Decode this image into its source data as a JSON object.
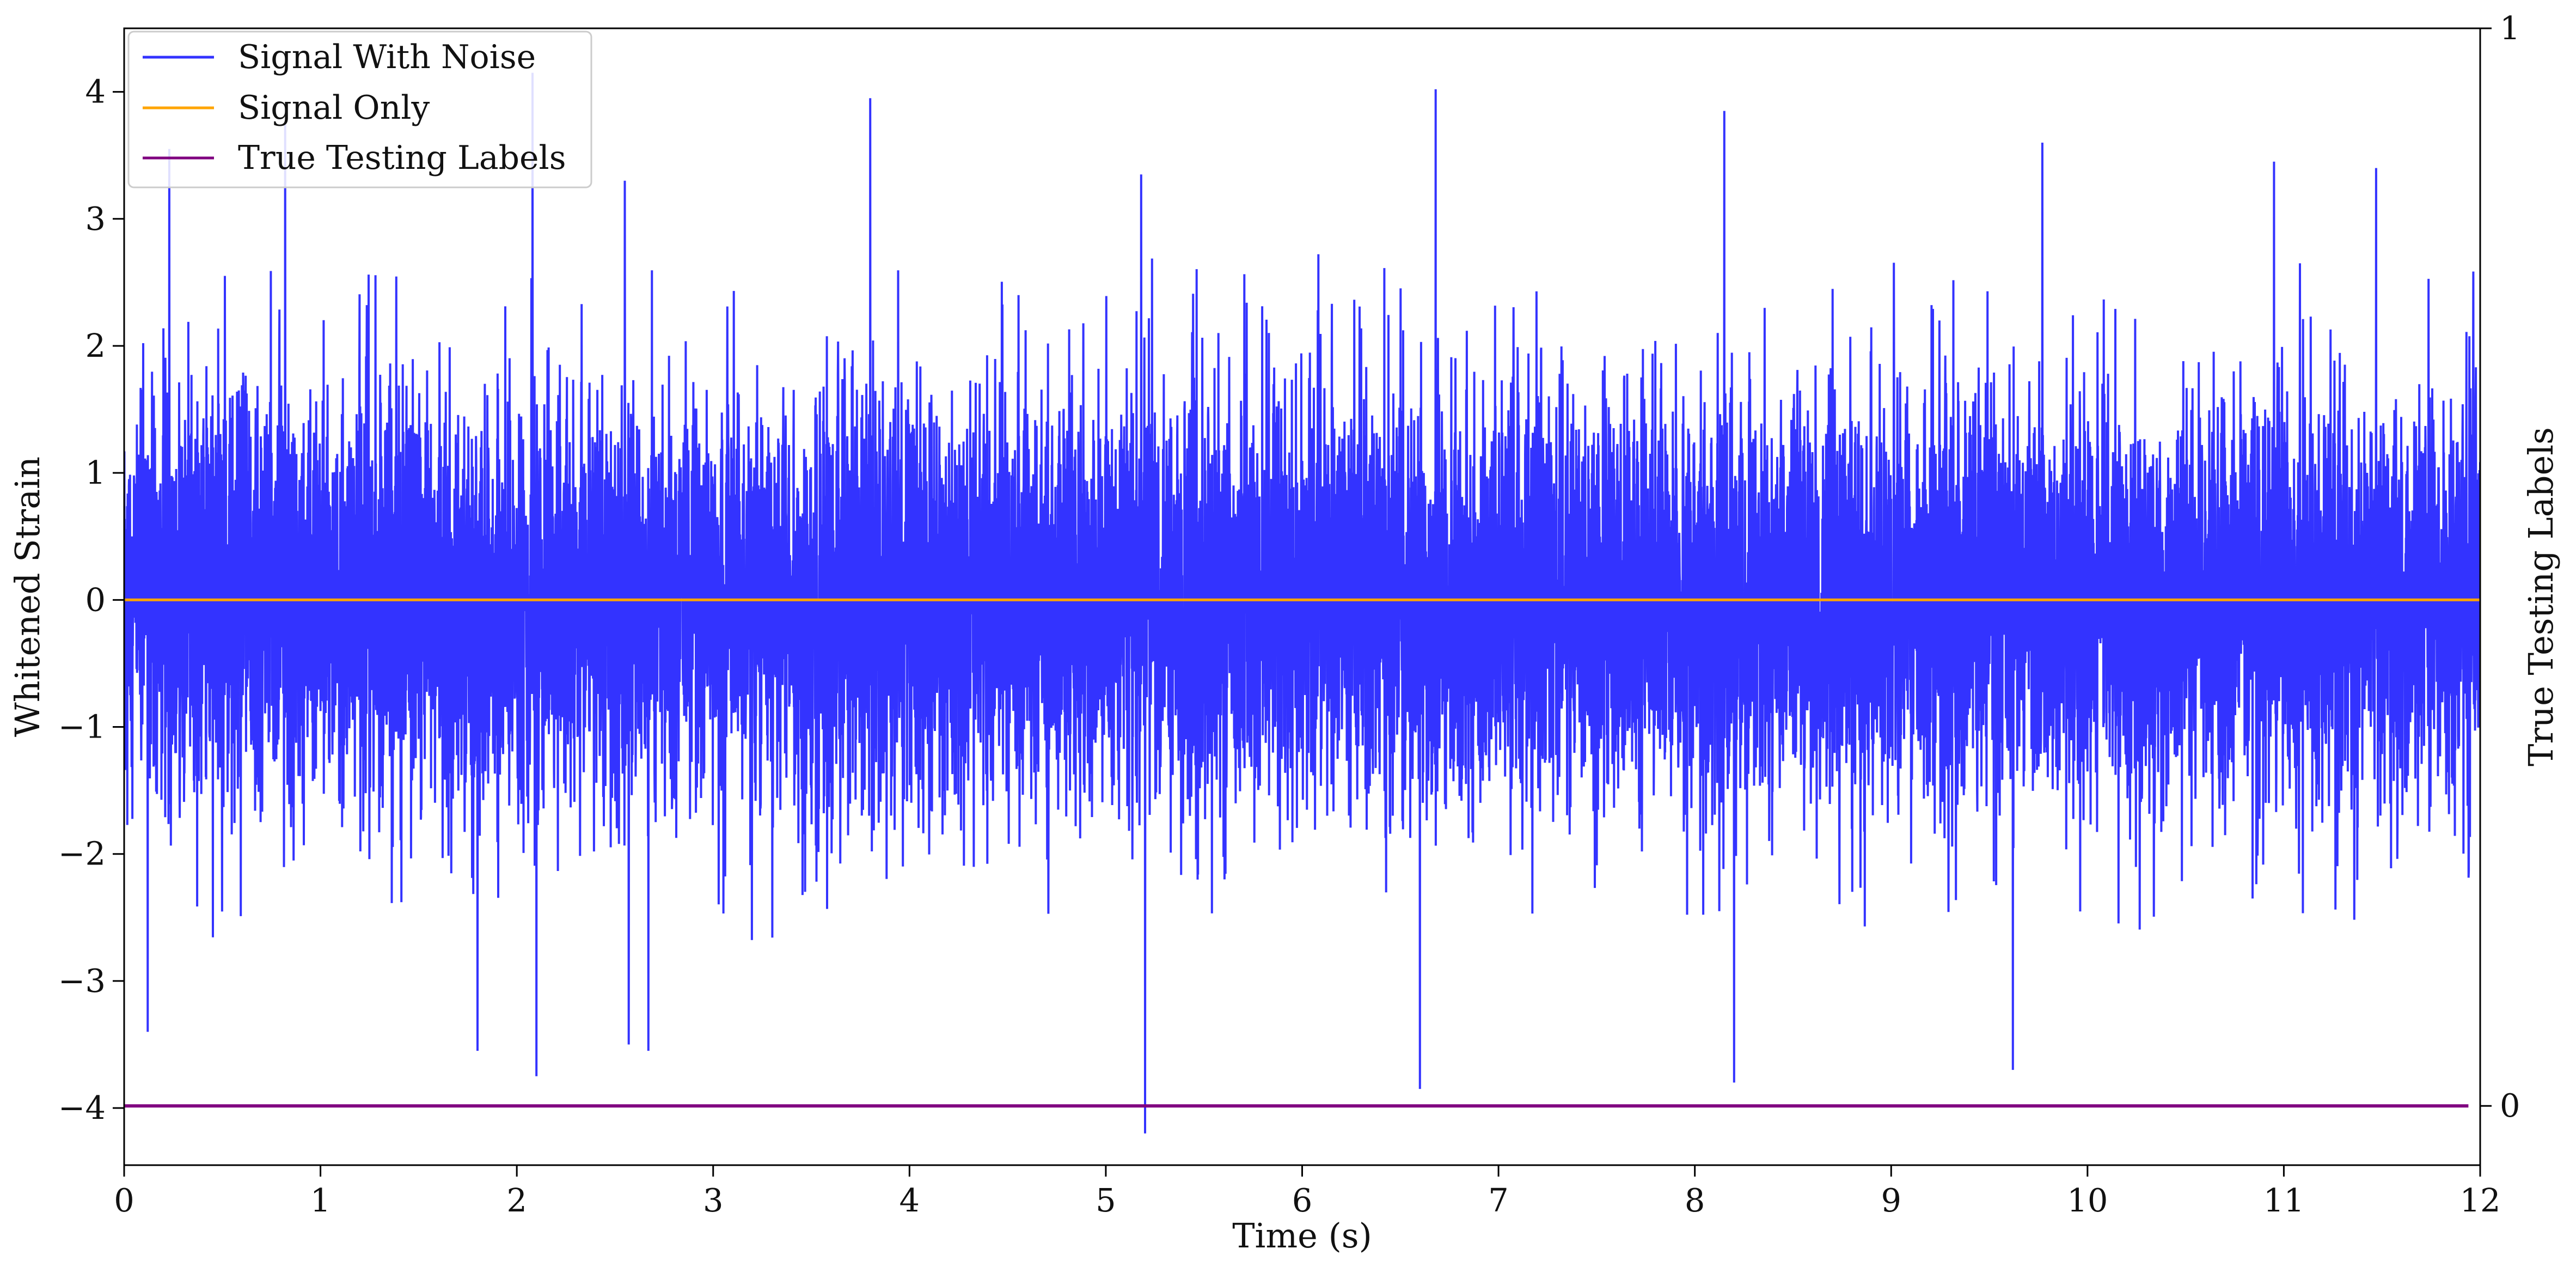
{
  "chart_data": {
    "type": "line",
    "title": "",
    "xlabel": "Time (s)",
    "ylabel": "Whitened Strain",
    "y2label": "True Testing Labels",
    "xlim": [
      0,
      12
    ],
    "ylim": [
      -4.45,
      4.5
    ],
    "y2lim": [
      -0.055,
      1.0
    ],
    "xticks": [
      0,
      1,
      2,
      3,
      4,
      5,
      6,
      7,
      8,
      9,
      10,
      11,
      12
    ],
    "xtick_labels": [
      "0",
      "1",
      "2",
      "3",
      "4",
      "5",
      "6",
      "7",
      "8",
      "9",
      "10",
      "11",
      "12"
    ],
    "yticks": [
      -4,
      -3,
      -2,
      -1,
      0,
      1,
      2,
      3,
      4
    ],
    "ytick_labels": [
      "−4",
      "−3",
      "−2",
      "−1",
      "0",
      "1",
      "2",
      "3",
      "4"
    ],
    "y2ticks": [
      0,
      1
    ],
    "y2tick_labels": [
      "0",
      "1"
    ],
    "grid": false,
    "legend_position": "top-left",
    "series": [
      {
        "name": "Signal With Noise",
        "axis": "left",
        "color": "#3333ff",
        "description_shape": "dense gaussian noise around 0, mostly within [-2.3, 2.5]",
        "spikes": [
          {
            "x": 0.23,
            "y": 3.55
          },
          {
            "x": 0.82,
            "y": 3.75
          },
          {
            "x": 2.08,
            "y": 4.15
          },
          {
            "x": 2.1,
            "y": -3.75
          },
          {
            "x": 2.55,
            "y": 3.3
          },
          {
            "x": 2.57,
            "y": -3.5
          },
          {
            "x": 2.67,
            "y": -3.55
          },
          {
            "x": 3.8,
            "y": 3.95
          },
          {
            "x": 5.2,
            "y": -4.2
          },
          {
            "x": 5.18,
            "y": 3.35
          },
          {
            "x": 6.6,
            "y": -3.85
          },
          {
            "x": 6.68,
            "y": 4.02
          },
          {
            "x": 8.15,
            "y": 3.85
          },
          {
            "x": 8.2,
            "y": -3.8
          },
          {
            "x": 9.77,
            "y": 3.6
          },
          {
            "x": 9.62,
            "y": -3.7
          },
          {
            "x": 0.12,
            "y": -3.4
          },
          {
            "x": 1.8,
            "y": -3.55
          },
          {
            "x": 10.95,
            "y": 3.45
          },
          {
            "x": 11.47,
            "y": 3.4
          }
        ]
      },
      {
        "name": "Signal Only",
        "axis": "left",
        "color": "#ffa500",
        "x": [
          0,
          12
        ],
        "y": [
          0,
          0
        ]
      },
      {
        "name": "True Testing Labels",
        "axis": "right",
        "color": "#800080",
        "x": [
          0,
          11.94
        ],
        "y": [
          0,
          0
        ]
      }
    ]
  }
}
